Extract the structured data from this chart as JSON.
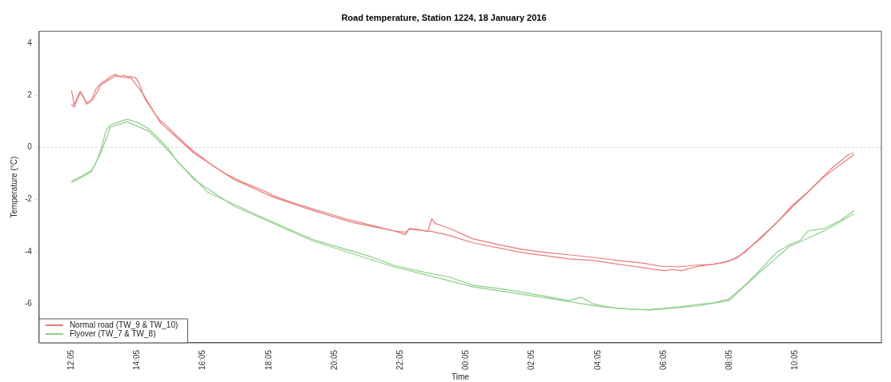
{
  "chart_data": {
    "type": "line",
    "title": "Road temperature, Station 1224, 18 January 2016",
    "xlabel": "Time",
    "ylabel": "Temperature (°C)",
    "xlim": [
      "2016-01-18T11:06",
      "2016-01-19T12:42"
    ],
    "ylim": [
      -7.5,
      4.45
    ],
    "xticks": [
      {
        "value": "2016-01-18T12:05",
        "label": "12:05"
      },
      {
        "value": "2016-01-18T14:05",
        "label": "14:05"
      },
      {
        "value": "2016-01-18T16:05",
        "label": "16:05"
      },
      {
        "value": "2016-01-18T18:05",
        "label": "18:05"
      },
      {
        "value": "2016-01-18T20:05",
        "label": "20:05"
      },
      {
        "value": "2016-01-18T22:05",
        "label": "22:05"
      },
      {
        "value": "2016-01-19T00:05",
        "label": "00:05"
      },
      {
        "value": "2016-01-19T02:05",
        "label": "02:05"
      },
      {
        "value": "2016-01-19T04:05",
        "label": "04:05"
      },
      {
        "value": "2016-01-19T06:05",
        "label": "06:05"
      },
      {
        "value": "2016-01-19T08:05",
        "label": "08:05"
      },
      {
        "value": "2016-01-19T10:05",
        "label": "10:05"
      }
    ],
    "yticks": [
      -6,
      -4,
      -2,
      0,
      2,
      4
    ],
    "grid": false,
    "legend": "bottom left",
    "line_style": "solid",
    "marker": "none",
    "ref_lines": [
      {
        "axis": "y",
        "value": 0,
        "color": "#c8c8c8",
        "line_style": "dotted"
      }
    ],
    "series": [
      {
        "name": "Normal road (TW_9 & TW_10)",
        "color": "#e87a7a",
        "x": [
          "2016-01-18T12:05",
          "2016-01-18T12:10",
          "2016-01-18T12:15",
          "2016-01-18T12:21",
          "2016-01-18T12:27",
          "2016-01-18T12:32",
          "2016-01-18T12:38",
          "2016-01-18T12:44",
          "2016-01-18T12:50",
          "2016-01-18T12:59",
          "2016-01-18T13:08",
          "2016-01-18T13:16",
          "2016-01-18T13:25",
          "2016-01-18T13:34",
          "2016-01-18T13:40",
          "2016-01-18T13:46",
          "2016-01-18T13:54",
          "2016-01-18T14:03",
          "2016-01-18T14:09",
          "2016-01-18T14:14",
          "2016-01-18T14:20",
          "2016-01-18T14:29",
          "2016-01-18T14:38",
          "2016-01-18T14:47",
          "2016-01-18T14:55",
          "2016-01-18T15:04",
          "2016-01-18T15:13",
          "2016-01-18T15:22",
          "2016-01-18T15:33",
          "2016-01-18T15:48",
          "2016-01-18T16:02",
          "2016-01-18T16:17",
          "2016-01-18T16:32",
          "2016-01-18T16:46",
          "2016-01-18T17:01",
          "2016-01-18T17:15",
          "2016-01-18T17:30",
          "2016-01-18T17:44",
          "2016-01-18T17:59",
          "2016-01-18T18:13",
          "2016-01-18T18:28",
          "2016-01-18T18:57",
          "2016-01-18T19:26",
          "2016-01-18T19:55",
          "2016-01-18T20:25",
          "2016-01-18T20:53",
          "2016-01-18T21:23",
          "2016-01-18T21:52",
          "2016-01-18T22:14",
          "2016-01-18T22:21",
          "2016-01-18T22:35",
          "2016-01-18T22:55",
          "2016-01-18T23:02",
          "2016-01-18T23:08",
          "2016-01-18T23:34",
          "2016-01-19T00:17",
          "2016-01-19T01:01",
          "2016-01-19T01:45",
          "2016-01-19T02:29",
          "2016-01-19T03:12",
          "2016-01-19T03:56",
          "2016-01-19T04:40",
          "2016-01-19T05:23",
          "2016-01-19T06:07",
          "2016-01-19T06:36",
          "2016-01-19T07:05",
          "2016-01-19T07:34",
          "2016-01-19T08:04",
          "2016-01-19T08:18",
          "2016-01-19T08:33",
          "2016-01-19T09:02",
          "2016-01-19T09:31",
          "2016-01-19T10:00",
          "2016-01-19T10:29",
          "2016-01-19T10:58",
          "2016-01-19T11:13",
          "2016-01-19T11:28",
          "2016-01-19T11:42",
          "2016-01-19T11:52"
        ],
        "values": [
          2.18,
          1.63,
          1.88,
          2.15,
          1.94,
          1.66,
          1.72,
          1.94,
          2.25,
          2.46,
          2.58,
          2.71,
          2.8,
          2.71,
          2.77,
          2.71,
          2.71,
          2.65,
          2.43,
          2.12,
          1.82,
          1.54,
          1.26,
          1.02,
          0.89,
          0.71,
          0.52,
          0.34,
          0.12,
          -0.15,
          -0.37,
          -0.62,
          -0.83,
          -1.02,
          -1.17,
          -1.32,
          -1.45,
          -1.57,
          -1.69,
          -1.85,
          -1.97,
          -2.18,
          -2.37,
          -2.55,
          -2.74,
          -2.89,
          -3.05,
          -3.2,
          -3.35,
          -3.11,
          -3.14,
          -3.23,
          -2.74,
          -2.92,
          -3.11,
          -3.51,
          -3.72,
          -3.91,
          -4.03,
          -4.12,
          -4.22,
          -4.34,
          -4.43,
          -4.58,
          -4.58,
          -4.52,
          -4.49,
          -4.37,
          -4.22,
          -4.03,
          -3.45,
          -2.89,
          -2.22,
          -1.69,
          -1.08,
          -0.77,
          -0.52,
          -0.28,
          -0.22
        ]
      },
      {
        "color": "#e87a7a",
        "x": [
          "2016-01-18T12:05",
          "2016-01-18T12:10",
          "2016-01-18T12:21",
          "2016-01-18T12:32",
          "2016-01-18T12:44",
          "2016-01-18T12:59",
          "2016-01-18T13:25",
          "2016-01-18T13:54",
          "2016-01-18T14:14",
          "2016-01-18T14:47",
          "2016-01-18T15:48",
          "2016-01-18T17:01",
          "2016-01-18T18:13",
          "2016-01-18T19:26",
          "2016-01-18T20:39",
          "2016-01-18T21:52",
          "2016-01-18T22:14",
          "2016-01-18T22:21",
          "2016-01-18T23:02",
          "2016-01-18T23:34",
          "2016-01-19T00:17",
          "2016-01-19T01:45",
          "2016-01-19T03:12",
          "2016-01-19T03:56",
          "2016-01-19T04:54",
          "2016-01-19T06:07",
          "2016-01-19T06:22",
          "2016-01-19T06:36",
          "2016-01-19T07:05",
          "2016-01-19T07:52",
          "2016-01-19T08:18",
          "2016-01-19T09:02",
          "2016-01-19T10:00",
          "2016-01-19T10:58",
          "2016-01-19T11:52"
        ],
        "values": [
          1.66,
          1.54,
          2.12,
          1.72,
          1.82,
          2.4,
          2.74,
          2.65,
          2.09,
          0.95,
          -0.22,
          -1.23,
          -1.91,
          -2.43,
          -2.89,
          -3.2,
          -3.26,
          -3.14,
          -3.23,
          -3.38,
          -3.66,
          -4.03,
          -4.28,
          -4.34,
          -4.52,
          -4.74,
          -4.68,
          -4.74,
          -4.58,
          -4.43,
          -4.25,
          -3.5,
          -2.28,
          -1.12,
          -0.28
        ]
      },
      {
        "name": "Flyover (TW_7 & TW_8)",
        "color": "#8fcf8a",
        "x": [
          "2016-01-18T12:05",
          "2016-01-18T12:24",
          "2016-01-18T12:41",
          "2016-01-18T12:50",
          "2016-01-18T12:59",
          "2016-01-18T13:08",
          "2016-01-18T13:16",
          "2016-01-18T13:25",
          "2016-01-18T13:46",
          "2016-01-18T14:06",
          "2016-01-18T14:26",
          "2016-01-18T14:44",
          "2016-01-18T15:01",
          "2016-01-18T15:19",
          "2016-01-18T15:48",
          "2016-01-18T16:13",
          "2016-01-18T17:01",
          "2016-01-18T17:49",
          "2016-01-18T18:38",
          "2016-01-18T19:26",
          "2016-01-18T20:10",
          "2016-01-18T21:08",
          "2016-01-18T21:52",
          "2016-01-18T22:50",
          "2016-01-18T23:34",
          "2016-01-19T00:17",
          "2016-01-19T01:16",
          "2016-01-19T02:14",
          "2016-01-19T03:12",
          "2016-01-19T03:34",
          "2016-01-19T03:56",
          "2016-01-19T04:40",
          "2016-01-19T05:09",
          "2016-01-19T05:38",
          "2016-01-19T06:07",
          "2016-01-19T06:36",
          "2016-01-19T07:05",
          "2016-01-19T07:34",
          "2016-01-19T08:04",
          "2016-01-19T08:33",
          "2016-01-19T09:02",
          "2016-01-19T09:31",
          "2016-01-19T09:53",
          "2016-01-19T10:14",
          "2016-01-19T10:29",
          "2016-01-19T10:58",
          "2016-01-19T11:28",
          "2016-01-19T11:52"
        ],
        "values": [
          -1.29,
          -1.11,
          -0.89,
          -0.58,
          -0.06,
          0.65,
          0.86,
          0.92,
          1.08,
          0.95,
          0.71,
          0.34,
          -0.03,
          -0.58,
          -1.17,
          -1.72,
          -2.18,
          -2.65,
          -3.11,
          -3.54,
          -3.82,
          -4.18,
          -4.52,
          -4.8,
          -4.98,
          -5.29,
          -5.45,
          -5.66,
          -5.88,
          -5.75,
          -6.0,
          -6.18,
          -6.22,
          -6.22,
          -6.18,
          -6.12,
          -6.03,
          -5.97,
          -5.82,
          -5.29,
          -4.68,
          -4.03,
          -3.75,
          -3.57,
          -3.2,
          -3.11,
          -2.8,
          -2.43
        ]
      },
      {
        "color": "#8fcf8a",
        "x": [
          "2016-01-18T12:05",
          "2016-01-18T12:41",
          "2016-01-18T12:59",
          "2016-01-18T13:16",
          "2016-01-18T13:46",
          "2016-01-18T14:26",
          "2016-01-18T15:01",
          "2016-01-18T15:48",
          "2016-01-18T17:01",
          "2016-01-18T19:26",
          "2016-01-18T21:52",
          "2016-01-19T00:17",
          "2016-01-19T02:43",
          "2016-01-19T04:11",
          "2016-01-19T05:38",
          "2016-01-19T07:05",
          "2016-01-19T08:04",
          "2016-01-19T09:02",
          "2016-01-19T09:53",
          "2016-01-19T10:58",
          "2016-01-19T11:52"
        ],
        "values": [
          -1.35,
          -0.95,
          -0.18,
          0.77,
          0.98,
          0.62,
          -0.12,
          -1.23,
          -2.25,
          -3.6,
          -4.58,
          -5.35,
          -5.82,
          -6.12,
          -6.25,
          -6.09,
          -5.88,
          -4.77,
          -3.82,
          -3.2,
          -2.55
        ]
      }
    ]
  }
}
